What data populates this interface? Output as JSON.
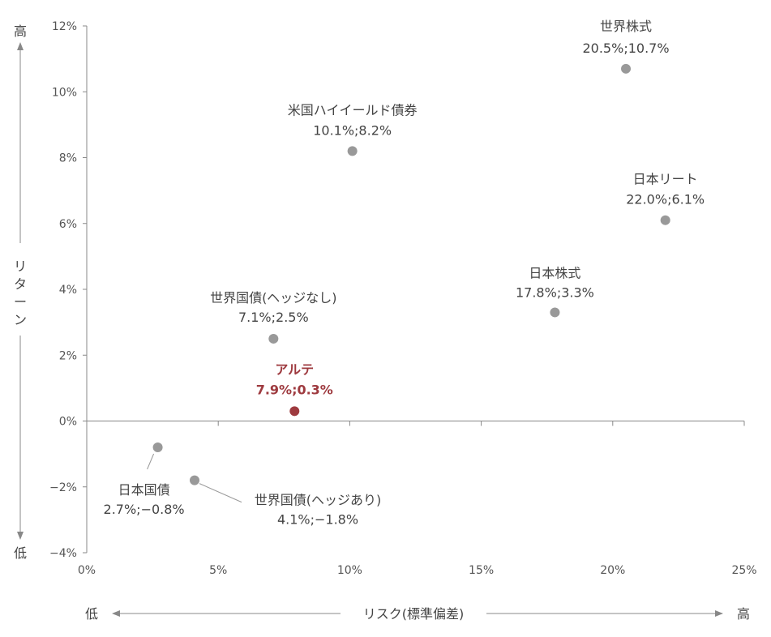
{
  "chart_data": {
    "type": "scatter",
    "xlabel": "リスク(標準偏差)",
    "ylabel": "リターン",
    "x_low_label": "低",
    "x_high_label": "高",
    "y_low_label": "低",
    "y_high_label": "高",
    "xlim": [
      0,
      25
    ],
    "ylim": [
      -4,
      12
    ],
    "x_ticks": [
      {
        "value": 0,
        "label": "0%"
      },
      {
        "value": 5,
        "label": "5%"
      },
      {
        "value": 10,
        "label": "10%"
      },
      {
        "value": 15,
        "label": "15%"
      },
      {
        "value": 20,
        "label": "20%"
      },
      {
        "value": 25,
        "label": "25%"
      }
    ],
    "y_ticks": [
      {
        "value": 12,
        "label": "12%"
      },
      {
        "value": 10,
        "label": "10%"
      },
      {
        "value": 8,
        "label": "8%"
      },
      {
        "value": 6,
        "label": "6%"
      },
      {
        "value": 4,
        "label": "4%"
      },
      {
        "value": 2,
        "label": "2%"
      },
      {
        "value": 0,
        "label": "0%"
      },
      {
        "value": -2,
        "label": "−2%"
      },
      {
        "value": -4,
        "label": "−4%"
      }
    ],
    "grid": false,
    "point_color": "#999999",
    "highlight_color": "#9e3a3f",
    "points": [
      {
        "name": "世界株式",
        "value_label": "20.5%;10.7%",
        "x": 20.5,
        "y": 10.7,
        "highlight": false
      },
      {
        "name": "米国ハイイールド債券",
        "value_label": "10.1%;8.2%",
        "x": 10.1,
        "y": 8.2,
        "highlight": false
      },
      {
        "name": "日本リート",
        "value_label": "22.0%;6.1%",
        "x": 22.0,
        "y": 6.1,
        "highlight": false
      },
      {
        "name": "日本株式",
        "value_label": "17.8%;3.3%",
        "x": 17.8,
        "y": 3.3,
        "highlight": false
      },
      {
        "name": "世界国債(ヘッジなし)",
        "value_label": "7.1%;2.5%",
        "x": 7.1,
        "y": 2.5,
        "highlight": false
      },
      {
        "name": "アルテ",
        "value_label": "7.9%;0.3%",
        "x": 7.9,
        "y": 0.3,
        "highlight": true
      },
      {
        "name": "日本国債",
        "value_label": "2.7%;−0.8%",
        "x": 2.7,
        "y": -0.8,
        "highlight": false
      },
      {
        "name": "世界国債(ヘッジあり)",
        "value_label": "4.1%;−1.8%",
        "x": 4.1,
        "y": -1.8,
        "highlight": false
      }
    ]
  }
}
